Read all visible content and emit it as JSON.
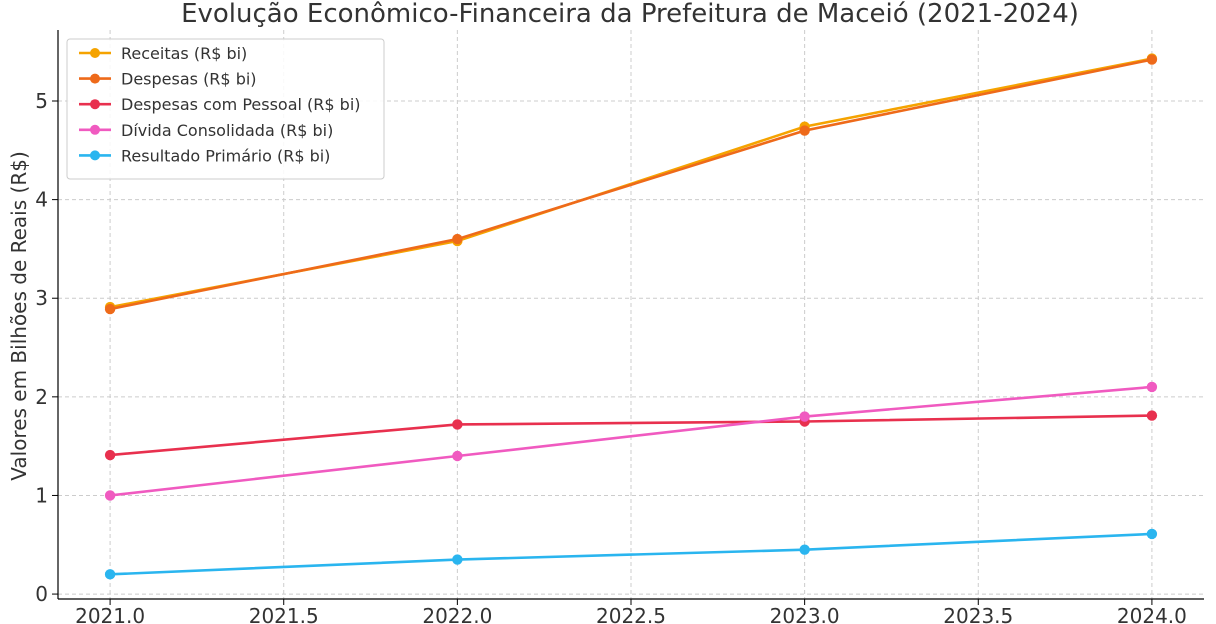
{
  "chart_data": {
    "type": "line",
    "title": "Evolução Econômico-Financeira da Prefeitura de Maceió (2021-2024)",
    "xlabel": "",
    "ylabel": "Valores em Bilhões de Reais (R$)",
    "x": [
      2021,
      2022,
      2023,
      2024
    ],
    "xlim": [
      2020.85,
      2024.15
    ],
    "ylim": [
      -0.05,
      5.72
    ],
    "xticks": [
      "2021.0",
      "2021.5",
      "2022.0",
      "2022.5",
      "2023.0",
      "2023.5",
      "2024.0"
    ],
    "xtick_values": [
      2021.0,
      2021.5,
      2022.0,
      2022.5,
      2023.0,
      2023.5,
      2024.0
    ],
    "yticks": [
      "0",
      "1",
      "2",
      "3",
      "4",
      "5"
    ],
    "ytick_values": [
      0,
      1,
      2,
      3,
      4,
      5
    ],
    "grid": true,
    "legend_position": "top-left",
    "series": [
      {
        "name": "Receitas (R$ bi)",
        "color": "#f5a300",
        "values": [
          2.91,
          3.58,
          4.74,
          5.43
        ]
      },
      {
        "name": "Despesas (R$ bi)",
        "color": "#ee6a1a",
        "values": [
          2.89,
          3.6,
          4.7,
          5.42
        ]
      },
      {
        "name": "Despesas com Pessoal (R$ bi)",
        "color": "#e8304e",
        "values": [
          1.41,
          1.72,
          1.75,
          1.81
        ]
      },
      {
        "name": "Dívida Consolidada (R$ bi)",
        "color": "#f05ac0",
        "values": [
          1.0,
          1.4,
          1.8,
          2.1
        ]
      },
      {
        "name": "Resultado Primário (R$ bi)",
        "color": "#2ab5ef",
        "values": [
          0.2,
          0.35,
          0.45,
          0.61
        ]
      }
    ]
  }
}
